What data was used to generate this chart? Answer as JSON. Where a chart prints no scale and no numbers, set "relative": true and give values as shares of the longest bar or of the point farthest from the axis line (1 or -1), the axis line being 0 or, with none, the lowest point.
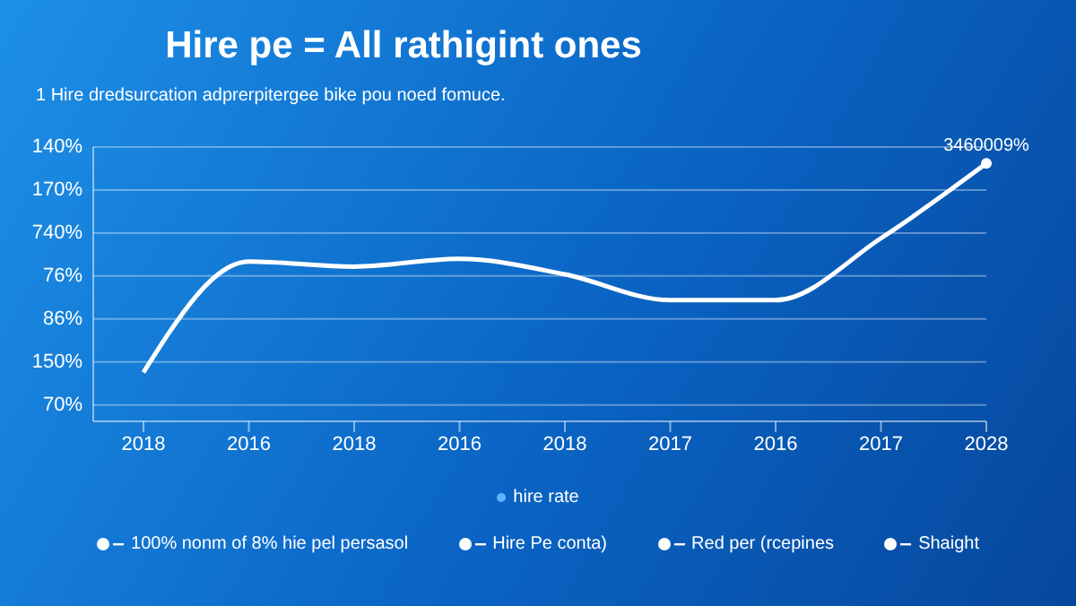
{
  "chart_data": {
    "type": "line",
    "title": "Hire pe = All rathigint ones",
    "subtitle": "1 Hire dredsurcation adprerpitergee bike pou noed fomuce.",
    "categories": [
      "2018",
      "2016",
      "2018",
      "2016",
      "2018",
      "2017",
      "2016",
      "2017",
      "2028"
    ],
    "series": [
      {
        "name": "hire rate",
        "color": "#ffffff",
        "values": [
          0.19,
          0.62,
          0.6,
          0.63,
          0.57,
          0.47,
          0.47,
          0.71,
          1
        ]
      }
    ],
    "relative": true,
    "annotations": [
      "140%",
      "170%",
      "740%",
      "76%",
      "86%",
      "150%",
      "70%",
      {
        "text": "3460009%",
        "x": "2028",
        "y": 1
      },
      "100% nonm of 8% hie pel persasol",
      "Hire Pe conta)",
      "Red per (rcepines",
      "Shaight"
    ],
    "grid": "y",
    "legend": "bottom",
    "marker": "none",
    "line_style": "solid"
  }
}
